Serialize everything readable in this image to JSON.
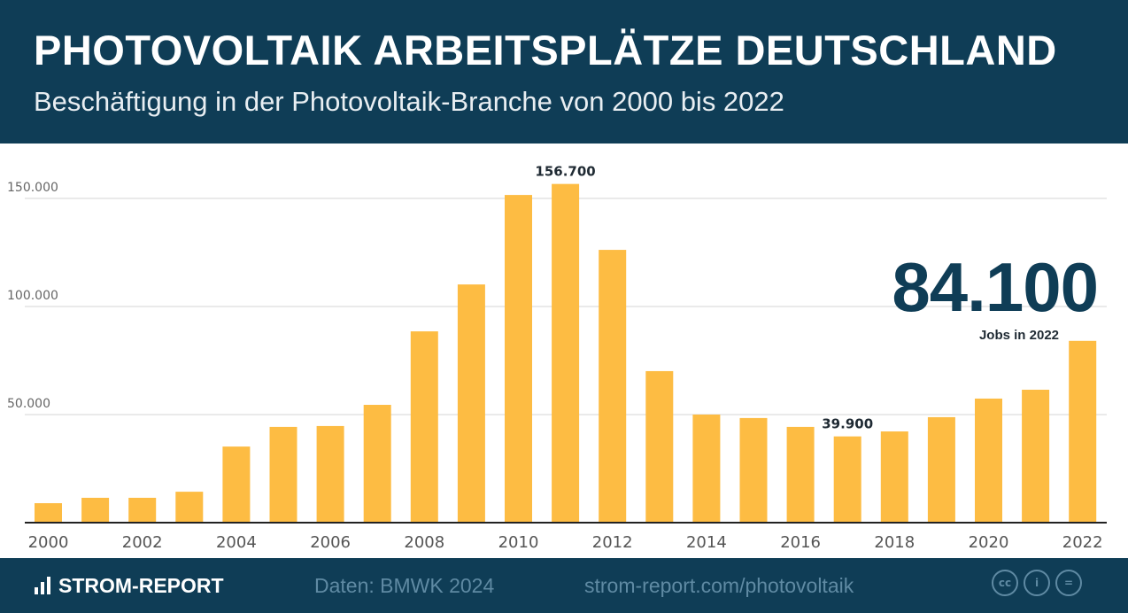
{
  "header": {
    "title": "PHOTOVOLTAIK ARBEITSPLÄTZE DEUTSCHLAND",
    "subtitle": "Beschäftigung in der Photovoltaik-Branche von 2000 bis 2022"
  },
  "highlight": {
    "value": "84.100",
    "label": "Jobs in 2022"
  },
  "footer": {
    "brand": "STROM-REPORT",
    "source": "Daten: BMWK 2024",
    "url": "strom-report.com/photovoltaik",
    "license_icons": [
      "cc-icon",
      "by-icon",
      "nd-icon"
    ],
    "license_labels": [
      "cc",
      "i",
      "="
    ]
  },
  "colors": {
    "bar": "#fdbc43",
    "header": "#0f3d56"
  },
  "chart_data": {
    "type": "bar",
    "categories": [
      "2000",
      "2001",
      "2002",
      "2003",
      "2004",
      "2005",
      "2006",
      "2007",
      "2008",
      "2009",
      "2010",
      "2011",
      "2012",
      "2013",
      "2014",
      "2015",
      "2016",
      "2017",
      "2018",
      "2019",
      "2020",
      "2021",
      "2022"
    ],
    "values": [
      9000,
      11500,
      11500,
      14300,
      35200,
      44300,
      44700,
      54500,
      88500,
      110200,
      151600,
      156700,
      126200,
      70100,
      50000,
      48400,
      44300,
      39900,
      42200,
      48800,
      57400,
      61500,
      84100
    ],
    "xtick_labels": [
      "2000",
      "2002",
      "2004",
      "2006",
      "2008",
      "2010",
      "2012",
      "2014",
      "2016",
      "2018",
      "2020",
      "2022"
    ],
    "yticks": [
      50000,
      100000,
      150000
    ],
    "ytick_labels": [
      "50.000",
      "100.000",
      "150.000"
    ],
    "data_labels": {
      "2011": "156.700",
      "2017": "39.900"
    },
    "ylim": [
      0,
      160000
    ],
    "grid": true
  }
}
